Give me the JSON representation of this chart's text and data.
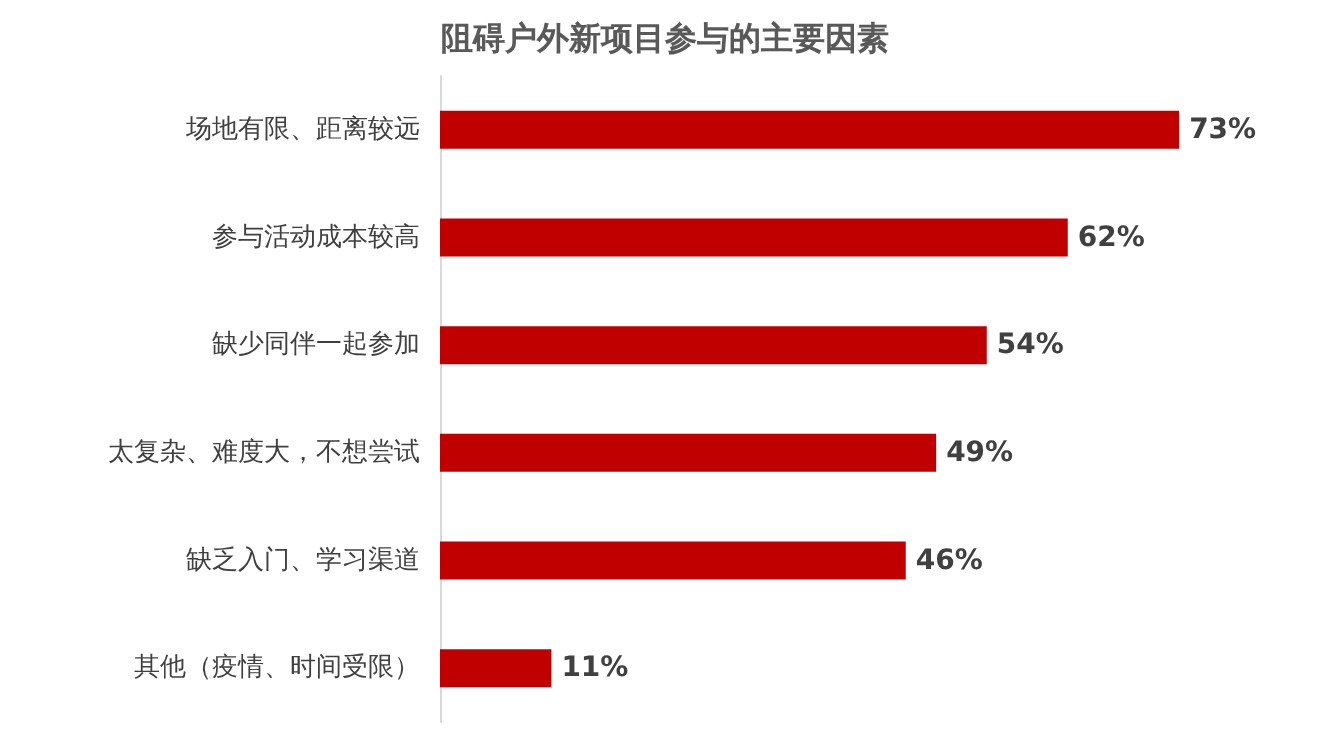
{
  "chart_data": {
    "type": "bar",
    "orientation": "horizontal",
    "title": "阻碍户外新项目参与的主要因素",
    "categories": [
      "场地有限、距离较远",
      "参与活动成本较高",
      "缺少同伴一起参加",
      "太复杂、难度大，不想尝试",
      "缺乏入门、学习渠道",
      "其他（疫情、时间受限）"
    ],
    "values": [
      73,
      62,
      54,
      49,
      46,
      11
    ],
    "value_labels": [
      "73%",
      "62%",
      "54%",
      "49%",
      "46%",
      "11%"
    ],
    "color": "#c00000"
  }
}
